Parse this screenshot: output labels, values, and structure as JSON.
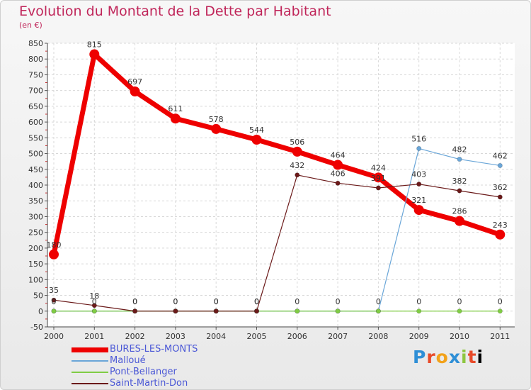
{
  "title": "Evolution du Montant de la Dette par Habitant",
  "unit": "(en €)",
  "logo": [
    "P",
    "r",
    "o",
    "x",
    "i",
    "t",
    "i"
  ],
  "chart_data": {
    "type": "line",
    "title": "Evolution du Montant de la Dette par Habitant",
    "ylabel": "(en €)",
    "x": [
      "2000",
      "2001",
      "2002",
      "2003",
      "2004",
      "2005",
      "2006",
      "2007",
      "2008",
      "2009",
      "2010",
      "2011"
    ],
    "ylim": [
      -50,
      850
    ],
    "yticks": [
      -50,
      0,
      50,
      100,
      150,
      200,
      250,
      300,
      350,
      400,
      450,
      500,
      550,
      600,
      650,
      700,
      750,
      800,
      850
    ],
    "grid": true,
    "legend_position": "bottom-left",
    "series": [
      {
        "name": "BURES-LES-MONTS",
        "color": "#ee0000",
        "width": 7,
        "marker": 7,
        "values": [
          180,
          815,
          697,
          611,
          578,
          544,
          506,
          464,
          424,
          321,
          286,
          243
        ],
        "labels": [
          "180",
          "815",
          "697",
          "611",
          "578",
          "544",
          "506",
          "464",
          "424",
          "321",
          "286",
          "243"
        ]
      },
      {
        "name": "Malloué",
        "color": "#6aa6d8",
        "width": 1.2,
        "marker": 3.2,
        "values": [
          0,
          0,
          0,
          0,
          0,
          0,
          0,
          0,
          0,
          516,
          482,
          462
        ],
        "labels": [
          "",
          "",
          "",
          "",
          "",
          "",
          "",
          "",
          "",
          "516",
          "482",
          "462"
        ]
      },
      {
        "name": "Pont-Bellanger",
        "color": "#80cc44",
        "width": 1.2,
        "marker": 3.2,
        "values": [
          0,
          0,
          0,
          0,
          0,
          0,
          0,
          0,
          0,
          0,
          0,
          0
        ],
        "labels": [
          "0",
          "0",
          "0",
          "0",
          "0",
          "0",
          "0",
          "0",
          "0",
          "0",
          "0",
          "0"
        ]
      },
      {
        "name": "Saint-Martin-Don",
        "color": "#6b1a1a",
        "width": 1.2,
        "marker": 3.2,
        "values": [
          35,
          18,
          0,
          0,
          0,
          0,
          432,
          406,
          391,
          403,
          382,
          362
        ],
        "labels": [
          "35",
          "18",
          "0",
          "0",
          "0",
          "0",
          "432",
          "406",
          "391",
          "403",
          "382",
          "362"
        ]
      }
    ]
  }
}
